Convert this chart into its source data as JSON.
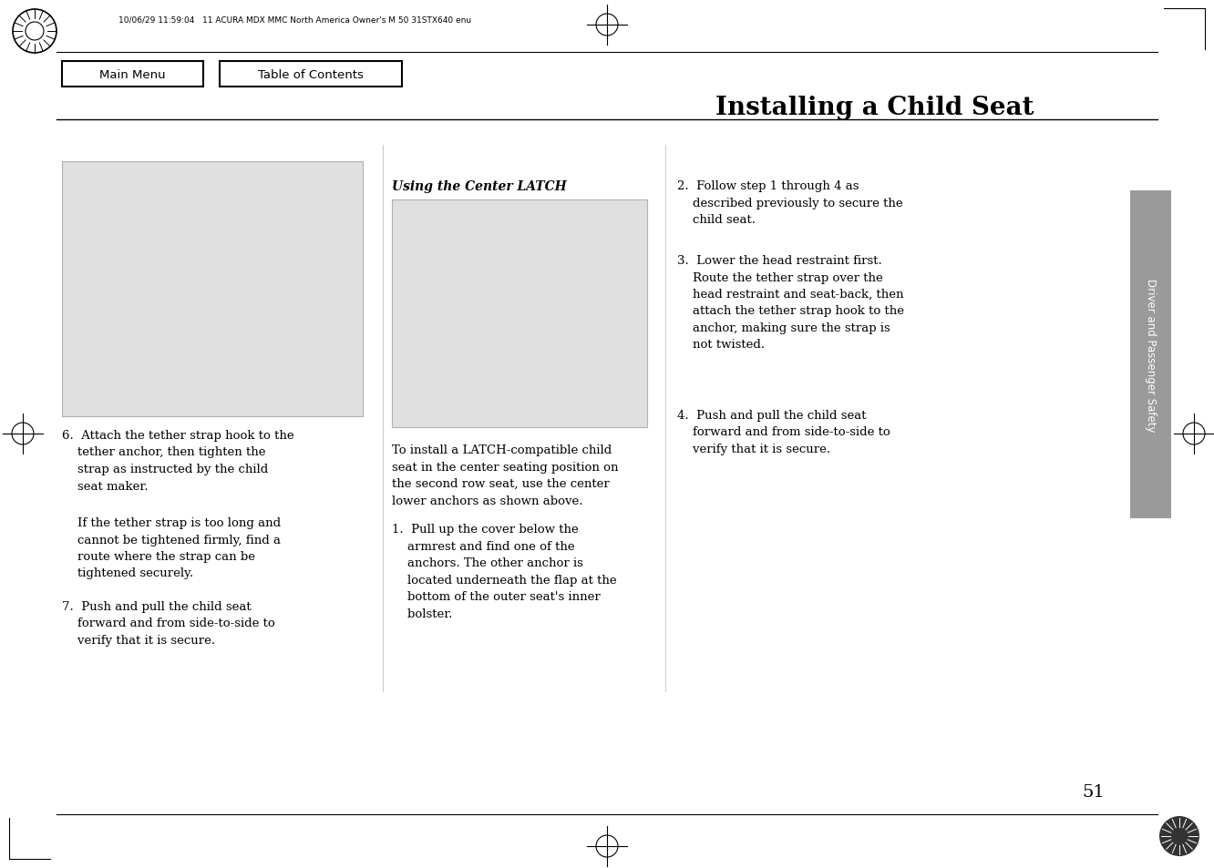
{
  "page_bg": "#ffffff",
  "header_text": "10/06/29 11:59:04   11 ACURA MDX MMC North America Owner's M 50 31STX640 enu",
  "title": "Installing a Child Seat",
  "nav_btn1": "Main Menu",
  "nav_btn2": "Table of Contents",
  "sidebar_label": "Driver and Passenger Safety",
  "page_number": "51",
  "left_col_text_1": "6.  Attach the tether strap hook to the\n    tether anchor, then tighten the\n    strap as instructed by the child\n    seat maker.",
  "left_col_text_2": "    If the tether strap is too long and\n    cannot be tightened firmly, find a\n    route where the strap can be\n    tightened securely.",
  "left_col_text_3": "7.  Push and pull the child seat\n    forward and from side-to-side to\n    verify that it is secure.",
  "center_heading": "Using the Center LATCH",
  "center_text_1": "To install a LATCH-compatible child\nseat in the center seating position on\nthe second row seat, use the center\nlower anchors as shown above.",
  "center_text_2": "1.  Pull up the cover below the\n    armrest and find one of the\n    anchors. The other anchor is\n    located underneath the flap at the\n    bottom of the outer seat's inner\n    bolster.",
  "right_text_1": "2.  Follow step 1 through 4 as\n    described previously to secure the\n    child seat.",
  "right_text_2": "3.  Lower the head restraint first.\n    Route the tether strap over the\n    head restraint and seat-back, then\n    attach the tether strap hook to the\n    anchor, making sure the strap is\n    not twisted.",
  "right_text_3": "4.  Push and pull the child seat\n    forward and from side-to-side to\n    verify that it is secure.",
  "gray_sidebar_color": "#9a9a9a",
  "img_placeholder_color": "#e0e0e0",
  "img_border_color": "#b0b0b0",
  "line_color": "#000000",
  "text_color": "#000000"
}
